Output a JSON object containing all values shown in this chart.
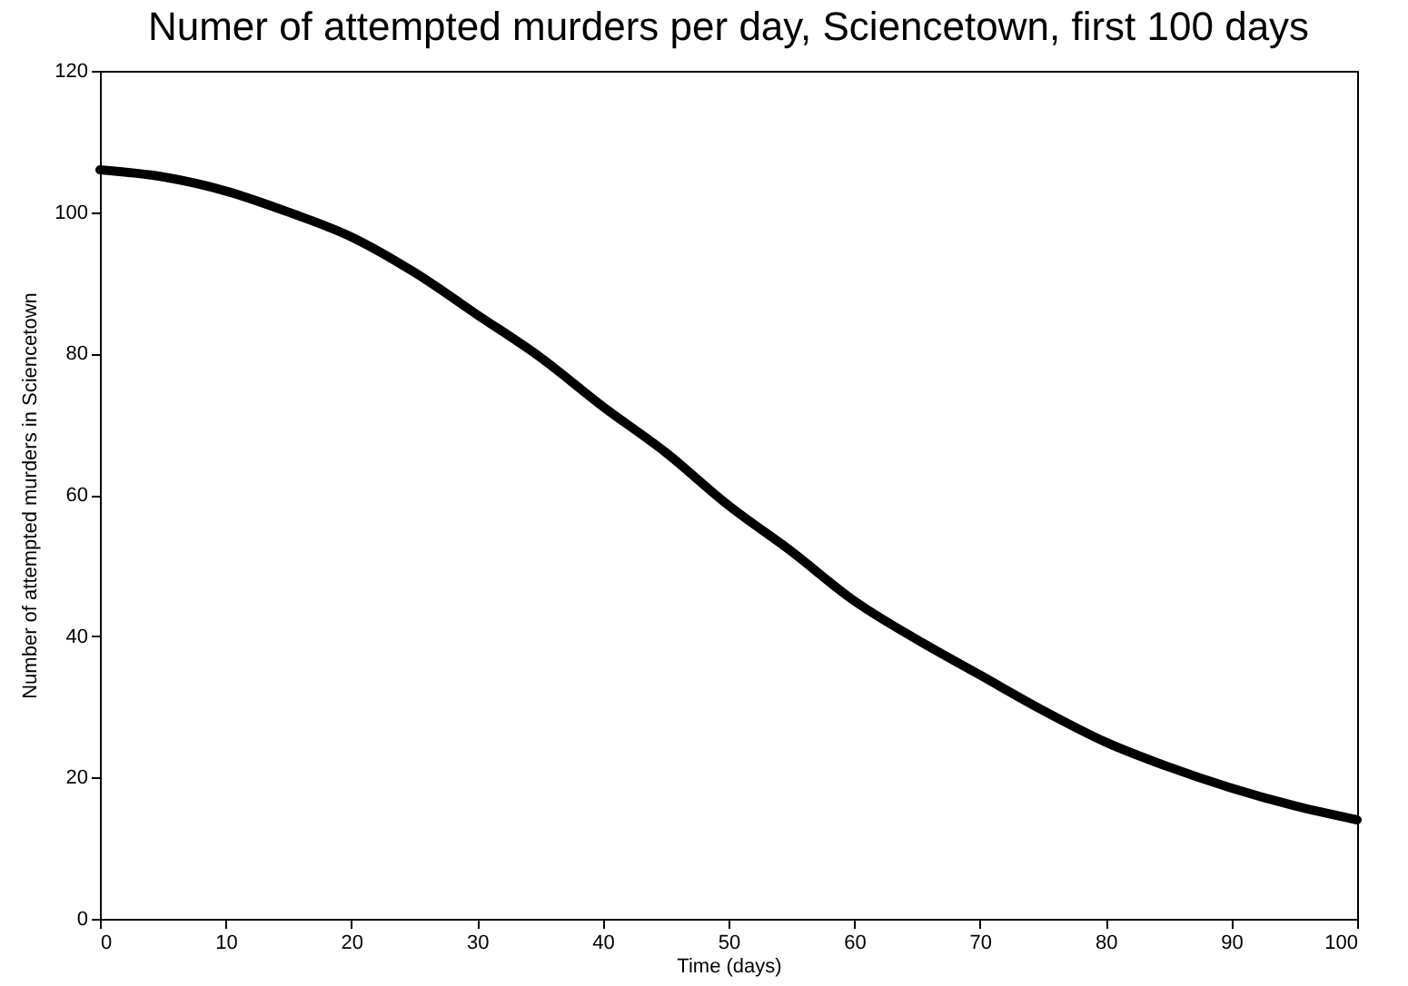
{
  "chart_data": {
    "type": "line",
    "title": "Numer of attempted murders per day, Sciencetown, first 100 days",
    "xlabel": "Time (days)",
    "ylabel": "Number of attempted murders in Sciencetown",
    "x": [
      0,
      5,
      10,
      15,
      20,
      25,
      30,
      35,
      40,
      45,
      50,
      55,
      60,
      65,
      70,
      75,
      80,
      85,
      90,
      95,
      100
    ],
    "series": [
      {
        "color": "#000000",
        "values": [
          106,
          105,
          103,
          100,
          96.5,
          91.5,
          85.5,
          79.5,
          72.5,
          66,
          58.5,
          52,
          45,
          39.5,
          34.5,
          29.5,
          25,
          21.5,
          18.5,
          16,
          14
        ]
      }
    ],
    "xlim": [
      0,
      100
    ],
    "xticks": [
      0,
      10,
      20,
      30,
      40,
      50,
      60,
      70,
      80,
      90,
      100
    ],
    "ylim": [
      0,
      120
    ],
    "yticks": [
      0,
      20,
      40,
      60,
      80,
      100,
      120
    ],
    "grid": false,
    "legend": false,
    "marker": "none",
    "line_style": "solid"
  }
}
